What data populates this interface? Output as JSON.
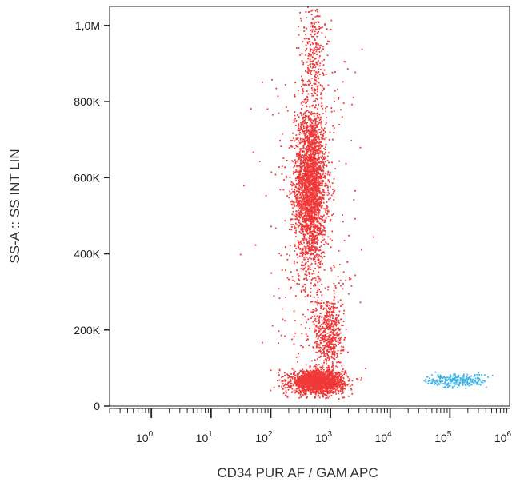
{
  "chart_data": {
    "type": "scatter",
    "title": "",
    "xlabel": "CD34 PUR AF / GAM APC",
    "ylabel": "SS-A :: SS INT LIN",
    "x_scale": "log",
    "xlim": [
      0.2,
      1000000
    ],
    "ylim": [
      0,
      1050000
    ],
    "grid": false,
    "legend": "none",
    "y_ticks": [
      {
        "value": 0,
        "label": "0"
      },
      {
        "value": 200000,
        "label": "200K"
      },
      {
        "value": 400000,
        "label": "400K"
      },
      {
        "value": 600000,
        "label": "600K"
      },
      {
        "value": 800000,
        "label": "800K"
      },
      {
        "value": 1000000,
        "label": "1,0M"
      }
    ],
    "x_ticks": [
      {
        "value": 1,
        "base": "10",
        "exp": "0"
      },
      {
        "value": 10,
        "base": "10",
        "exp": "1"
      },
      {
        "value": 100,
        "base": "10",
        "exp": "2"
      },
      {
        "value": 1000,
        "base": "10",
        "exp": "3"
      },
      {
        "value": 10000,
        "base": "10",
        "exp": "4"
      },
      {
        "value": 100000,
        "base": "10",
        "exp": "5"
      },
      {
        "value": 1000000,
        "base": "10",
        "exp": "6"
      }
    ],
    "series": [
      {
        "color": "#f03838",
        "clusters": [
          {
            "x_center": 450,
            "x_log_sd": 0.13,
            "y_center": 580000,
            "y_sd": 105000,
            "count": 2600
          },
          {
            "x_center": 600,
            "x_log_sd": 0.22,
            "y_center": 65000,
            "y_sd": 15000,
            "count": 1900
          },
          {
            "x_center": 900,
            "x_log_sd": 0.12,
            "y_center": 190000,
            "y_sd": 55000,
            "count": 550
          },
          {
            "x_center": 500,
            "x_log_sd": 0.1,
            "y_center": 940000,
            "y_sd": 70000,
            "count": 260
          },
          {
            "x_center": 450,
            "x_log_sd": 0.4,
            "y_center": 450000,
            "y_sd": 280000,
            "count": 400
          }
        ]
      },
      {
        "color": "#3cb4e6",
        "clusters": [
          {
            "x_center": 130000,
            "x_log_sd": 0.25,
            "y_center": 68000,
            "y_sd": 9000,
            "count": 240
          }
        ]
      }
    ]
  }
}
